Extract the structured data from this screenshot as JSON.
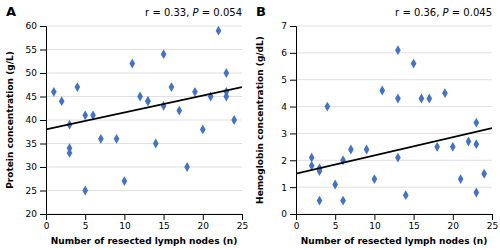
{
  "chart_data": [
    {
      "type": "scatter",
      "title": "A",
      "xlabel": "Number of resected lymph nodes (n)",
      "ylabel": "Protein concentration (g/L)",
      "annotation": [
        "r = 0.33, ",
        "P",
        " = 0.054"
      ],
      "xlim": [
        0,
        25
      ],
      "ylim": [
        20,
        60
      ],
      "xticks": [
        0,
        5,
        10,
        15,
        20,
        25
      ],
      "yticks": [
        20,
        25,
        30,
        35,
        40,
        45,
        50,
        55,
        60
      ],
      "grid": "y",
      "series": [
        {
          "type": "scatter",
          "marker": "diamond",
          "color": "#4472C4",
          "x": [
            1,
            2,
            3,
            3,
            3,
            4,
            5,
            5,
            6,
            7,
            9,
            10,
            11,
            12,
            13,
            13,
            14,
            15,
            15,
            16,
            17,
            18,
            19,
            20,
            21,
            22,
            23,
            23,
            23,
            24
          ],
          "values": [
            46,
            44,
            39,
            34,
            33,
            47,
            41,
            25,
            41,
            36,
            36,
            27,
            52,
            45,
            44,
            44,
            35,
            43,
            54,
            47,
            42,
            30,
            46,
            38,
            45,
            59,
            45,
            46,
            50,
            40
          ]
        },
        {
          "type": "line",
          "color": "black",
          "x": [
            0,
            25
          ],
          "values": [
            38.0,
            47.0
          ]
        }
      ]
    },
    {
      "type": "scatter",
      "title": "B",
      "xlabel": "Number of resected lymph nodes (n)",
      "ylabel": "Hemoglobin concentration (g/dL)",
      "annotation": [
        "r = 0.36, ",
        "P",
        " = 0.045"
      ],
      "xlim": [
        0,
        25
      ],
      "ylim": [
        0,
        7
      ],
      "xticks": [
        0,
        5,
        10,
        15,
        20,
        25
      ],
      "yticks": [
        0,
        1,
        2,
        3,
        4,
        5,
        6,
        7
      ],
      "grid": "y",
      "series": [
        {
          "type": "scatter",
          "marker": "diamond",
          "color": "#4472C4",
          "x": [
            2,
            2,
            3,
            3,
            3,
            4,
            5,
            6,
            6,
            7,
            9,
            10,
            11,
            13,
            13,
            13,
            14,
            15,
            16,
            17,
            18,
            19,
            20,
            21,
            22,
            23,
            23,
            23,
            24
          ],
          "values": [
            2.1,
            1.8,
            1.7,
            1.6,
            0.5,
            4.0,
            1.1,
            0.5,
            2.0,
            2.4,
            2.4,
            1.3,
            4.6,
            4.3,
            2.1,
            6.1,
            0.7,
            5.6,
            4.3,
            4.3,
            2.5,
            4.5,
            2.5,
            1.3,
            2.7,
            2.6,
            3.4,
            0.8,
            1.5
          ]
        },
        {
          "type": "line",
          "color": "black",
          "x": [
            0,
            25
          ],
          "values": [
            1.5,
            3.2
          ]
        }
      ]
    }
  ]
}
